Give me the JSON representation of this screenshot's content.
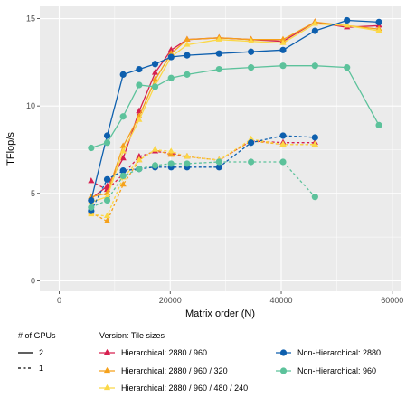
{
  "chart_data": {
    "type": "line",
    "xlabel": "Matrix order (N)",
    "ylabel": "TFlop/s",
    "xlim": [
      -3500,
      61500
    ],
    "ylim": [
      -0.6,
      15.7
    ],
    "xticks": [
      0,
      20000,
      40000,
      60000
    ],
    "xtick_labels": [
      "0",
      "20000",
      "40000",
      "60000"
    ],
    "yticks": [
      0,
      5,
      10,
      15
    ],
    "ytick_labels": [
      "0",
      "5",
      "10",
      "15"
    ],
    "grid": true,
    "background": "#ebebeb",
    "legend": {
      "placement": "bottom",
      "linetype_title": "# of GPUs",
      "linetype_entries": [
        {
          "label": "2",
          "dash": "solid"
        },
        {
          "label": "1",
          "dash": "dashed"
        }
      ],
      "color_title": "Version: Tile sizes"
    },
    "series": [
      {
        "name": "Hierarchical: 2880 / 960",
        "gpus": "2",
        "color": "#d6204f",
        "marker": "triangle",
        "x": [
          5760,
          8640,
          11520,
          14400,
          17280,
          20160,
          23040,
          28800,
          34560,
          40320,
          46080,
          51840,
          57600
        ],
        "y": [
          4.7,
          5.4,
          7.0,
          9.7,
          11.9,
          13.2,
          13.8,
          13.9,
          13.8,
          13.7,
          14.8,
          14.5,
          14.6
        ]
      },
      {
        "name": "Hierarchical: 2880 / 960",
        "gpus": "1",
        "color": "#d6204f",
        "marker": "triangle",
        "x": [
          5760,
          8640,
          11520,
          14400,
          17280,
          20160,
          23040,
          28800,
          34560,
          40320,
          46080
        ],
        "y": [
          5.7,
          5.2,
          6.1,
          7.1,
          7.4,
          7.3,
          7.1,
          6.9,
          8.0,
          7.9,
          7.9
        ]
      },
      {
        "name": "Hierarchical: 2880 / 960 / 320",
        "gpus": "2",
        "color": "#f5a11b",
        "marker": "triangle",
        "x": [
          5760,
          8640,
          11520,
          14400,
          17280,
          20160,
          23040,
          28800,
          34560,
          40320,
          46080,
          51840,
          57600
        ],
        "y": [
          4.8,
          5.0,
          7.7,
          9.4,
          11.5,
          13.0,
          13.8,
          13.9,
          13.8,
          13.8,
          14.8,
          14.6,
          14.4
        ]
      },
      {
        "name": "Hierarchical: 2880 / 960 / 320",
        "gpus": "1",
        "color": "#f5a11b",
        "marker": "triangle",
        "x": [
          5760,
          8640,
          11520,
          14400,
          17280,
          20160,
          23040,
          28800,
          34560,
          40320,
          46080
        ],
        "y": [
          3.9,
          3.4,
          5.5,
          6.9,
          7.5,
          7.2,
          7.1,
          6.9,
          8.0,
          7.8,
          7.8
        ]
      },
      {
        "name": "Hierarchical: 2880 / 960 / 480 / 240",
        "gpus": "2",
        "color": "#fbd847",
        "marker": "triangle",
        "x": [
          5760,
          8640,
          11520,
          14400,
          17280,
          20160,
          23040,
          28800,
          34560,
          40320,
          46080,
          51840,
          57600
        ],
        "y": [
          4.5,
          4.8,
          7.4,
          9.2,
          11.2,
          12.8,
          13.5,
          13.8,
          13.7,
          13.6,
          14.7,
          14.6,
          14.3
        ]
      },
      {
        "name": "Hierarchical: 2880 / 960 / 480 / 240",
        "gpus": "1",
        "color": "#fbd847",
        "marker": "triangle",
        "x": [
          5760,
          8640,
          11520,
          14400,
          17280,
          20160,
          23040,
          28800,
          34560,
          40320,
          46080
        ],
        "y": [
          3.8,
          3.7,
          5.9,
          6.9,
          7.5,
          7.4,
          7.1,
          6.9,
          8.1,
          7.8,
          7.8
        ]
      },
      {
        "name": "Non-Hierarchical: 2880",
        "gpus": "2",
        "color": "#0d5fae",
        "marker": "circle",
        "x": [
          5760,
          8640,
          11520,
          14400,
          17280,
          20160,
          23040,
          28800,
          34560,
          40320,
          46080,
          51840,
          57600
        ],
        "y": [
          4.6,
          8.3,
          11.8,
          12.1,
          12.4,
          12.8,
          12.9,
          13.0,
          13.1,
          13.2,
          14.3,
          14.9,
          14.8
        ]
      },
      {
        "name": "Non-Hierarchical: 2880",
        "gpus": "1",
        "color": "#0d5fae",
        "marker": "circle",
        "x": [
          5760,
          8640,
          11520,
          14400,
          17280,
          20160,
          23040,
          28800,
          34560,
          40320,
          46080
        ],
        "y": [
          4.0,
          5.8,
          6.3,
          6.4,
          6.5,
          6.5,
          6.5,
          6.5,
          7.9,
          8.3,
          8.2
        ]
      },
      {
        "name": "Non-Hierarchical: 960",
        "gpus": "2",
        "color": "#5cc29b",
        "marker": "circle",
        "x": [
          5760,
          8640,
          11520,
          14400,
          17280,
          20160,
          23040,
          28800,
          34560,
          40320,
          46080,
          51840,
          57600
        ],
        "y": [
          7.6,
          7.9,
          9.4,
          11.2,
          11.1,
          11.6,
          11.8,
          12.1,
          12.2,
          12.3,
          12.3,
          12.2,
          8.9
        ]
      },
      {
        "name": "Non-Hierarchical: 960",
        "gpus": "1",
        "color": "#5cc29b",
        "marker": "circle",
        "x": [
          5760,
          8640,
          11520,
          14400,
          17280,
          20160,
          23040,
          28800,
          34560,
          40320,
          46080
        ],
        "y": [
          4.2,
          4.6,
          6.0,
          6.4,
          6.6,
          6.7,
          6.7,
          6.8,
          6.8,
          6.8,
          4.8
        ]
      }
    ],
    "color_legend_entries": [
      {
        "label": "Hierarchical: 2880 / 960",
        "color": "#d6204f",
        "marker": "triangle"
      },
      {
        "label": "Hierarchical: 2880 / 960 / 320",
        "color": "#f5a11b",
        "marker": "triangle"
      },
      {
        "label": "Hierarchical: 2880 / 960 / 480 / 240",
        "color": "#fbd847",
        "marker": "triangle"
      },
      {
        "label": "Non-Hierarchical: 2880",
        "color": "#0d5fae",
        "marker": "circle"
      },
      {
        "label": "Non-Hierarchical: 960",
        "color": "#5cc29b",
        "marker": "circle"
      }
    ]
  }
}
